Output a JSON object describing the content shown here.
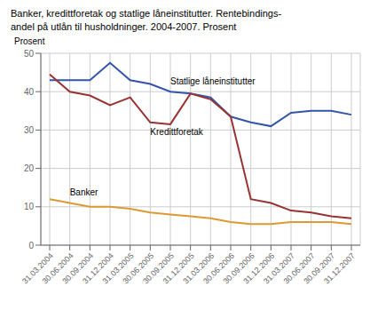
{
  "chart_data": {
    "type": "line",
    "title": "Banker, kredittforetak og statlige låneinstitutter. Rentebindings-",
    "subtitle": "andel på utlån til husholdninger. 2004-2007. Prosent",
    "ylabel": "Prosent",
    "categories": [
      "31.03.2004",
      "30.06.2004",
      "30.09.2004",
      "31.12.2004",
      "31.03.2005",
      "30.06.2005",
      "30.09.2005",
      "31.12.2005",
      "31.03.2006",
      "30.06.2006",
      "30.09.2006",
      "31.12.2006",
      "31.03.2007",
      "30.06.2007",
      "30.09.2007",
      "31.12.2007"
    ],
    "series": [
      {
        "name": "Statlige låneinstitutter",
        "color": "#3355aa",
        "values": [
          43,
          43,
          43,
          47.5,
          43,
          42,
          40,
          39.5,
          38.5,
          33.5,
          32,
          31,
          34.5,
          35,
          35,
          34
        ]
      },
      {
        "name": "Kredittforetak",
        "color": "#993333",
        "values": [
          44.5,
          40,
          39,
          36.5,
          38.5,
          32,
          31.5,
          39.5,
          38,
          33.5,
          12,
          11,
          9,
          8.5,
          7.5,
          7
        ]
      },
      {
        "name": "Banker",
        "color": "#dd9933",
        "values": [
          12,
          11,
          10,
          10,
          9.5,
          8.5,
          8,
          7.5,
          7,
          6,
          5.5,
          5.5,
          6,
          6,
          6,
          5.5
        ]
      }
    ],
    "ylim": [
      0,
      50
    ],
    "yticks": [
      0,
      10,
      20,
      30,
      40,
      50
    ],
    "grid": true
  }
}
